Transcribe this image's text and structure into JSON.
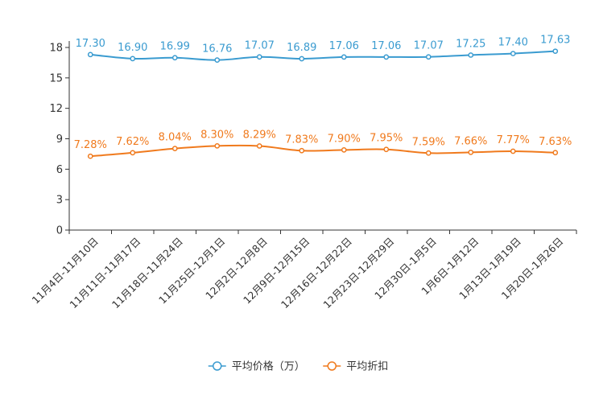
{
  "chart_data": {
    "type": "line",
    "title": "",
    "xlabel": "",
    "ylabel": "",
    "ylim": [
      0,
      18
    ],
    "yticks": [
      0,
      3,
      6,
      9,
      12,
      15,
      18
    ],
    "categories": [
      "11月4日-11月10日",
      "11月11日-11月17日",
      "11月18日-11月24日",
      "11月25日-12月1日",
      "12月2日-12月8日",
      "12月9日-12月15日",
      "12月16日-12月22日",
      "12月23日-12月29日",
      "12月30日-1月5日",
      "1月6日-1月12日",
      "1月13日-1月19日",
      "1月20日-1月26日"
    ],
    "series": [
      {
        "name": "平均价格（万）",
        "color": "#3a9bd0",
        "values": [
          17.3,
          16.9,
          16.99,
          16.76,
          17.07,
          16.89,
          17.06,
          17.06,
          17.07,
          17.25,
          17.4,
          17.63
        ],
        "labels": [
          "17.30",
          "16.90",
          "16.99",
          "16.76",
          "17.07",
          "16.89",
          "17.06",
          "17.06",
          "17.07",
          "17.25",
          "17.40",
          "17.63"
        ]
      },
      {
        "name": "平均折扣",
        "color": "#f07a1d",
        "values": [
          7.28,
          7.62,
          8.04,
          8.3,
          8.29,
          7.83,
          7.9,
          7.95,
          7.59,
          7.66,
          7.77,
          7.63
        ],
        "labels": [
          "7.28%",
          "7.62%",
          "8.04%",
          "8.30%",
          "8.29%",
          "7.83%",
          "7.90%",
          "7.95%",
          "7.59%",
          "7.66%",
          "7.77%",
          "7.63%"
        ]
      }
    ],
    "legend_position": "bottom-center",
    "grid": false
  }
}
